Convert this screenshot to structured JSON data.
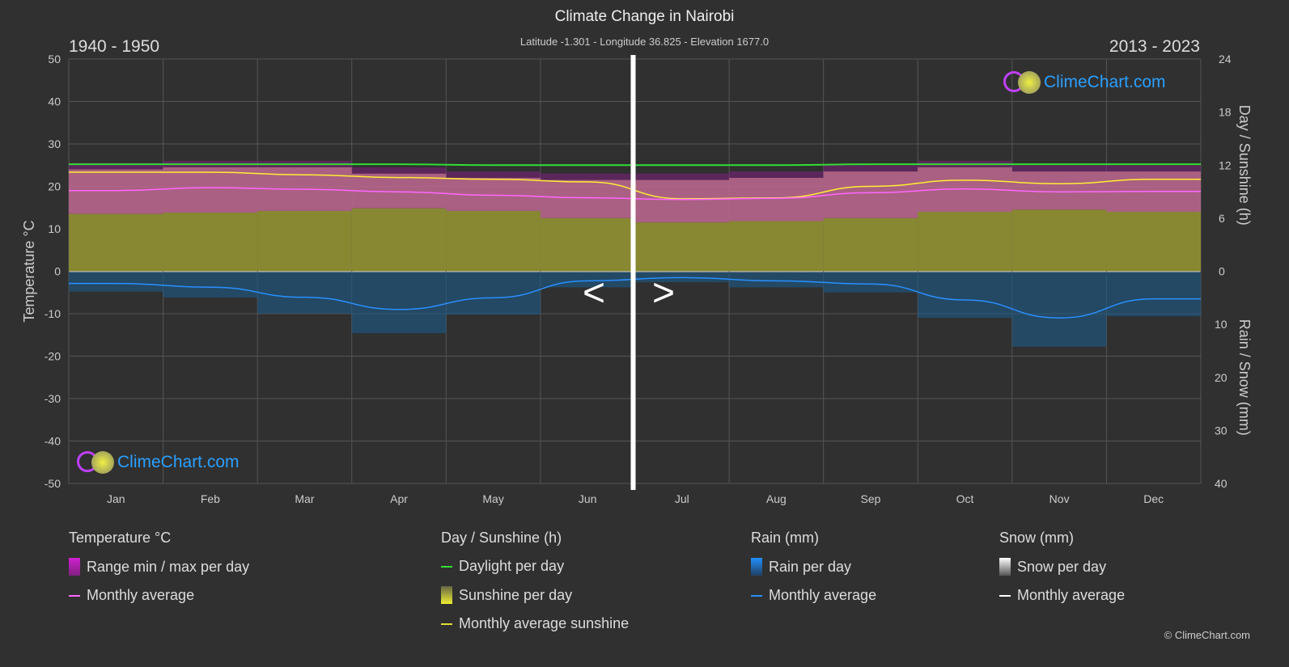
{
  "header": {
    "title": "Climate Change in Nairobi",
    "subtitle": "Latitude -1.301 - Longitude 36.825 - Elevation 1677.0",
    "left_period": "1940 - 1950",
    "right_period": "2013 - 2023"
  },
  "nav": {
    "prev": "<",
    "next": ">"
  },
  "logo": "ClimeChart.com",
  "copyright": "© ClimeChart.com",
  "legend": {
    "temperature": {
      "title": "Temperature °C",
      "items": [
        "Range min / max per day",
        "Monthly average"
      ]
    },
    "sun": {
      "title": "Day / Sunshine (h)",
      "items": [
        "Daylight per day",
        "Sunshine per day",
        "Monthly average sunshine"
      ]
    },
    "rain": {
      "title": "Rain (mm)",
      "items": [
        "Rain per day",
        "Monthly average"
      ]
    },
    "snow": {
      "title": "Snow (mm)",
      "items": [
        "Snow per day",
        "Monthly average"
      ]
    }
  },
  "colors": {
    "temp_avg": "#ff66ff",
    "temp_range": "#d070a0",
    "daylight": "#33dd33",
    "sunshine": "#c8c840",
    "sunshine_avg": "#ffee33",
    "rain": "#1e88e5",
    "snow": "#ffffff"
  },
  "chart_data": {
    "type": "line",
    "left_axis": {
      "label": "Temperature °C",
      "ylim": [
        -50,
        50
      ],
      "ticks": [
        50,
        40,
        30,
        20,
        10,
        0,
        -10,
        -20,
        -30,
        -40,
        -50
      ]
    },
    "right_axis_top": {
      "label": "Day / Sunshine (h)",
      "ylim": [
        0,
        24
      ],
      "ticks": [
        24,
        18,
        12,
        6,
        0
      ]
    },
    "right_axis_bottom": {
      "label": "Rain / Snow (mm)",
      "ylim": [
        0,
        40
      ],
      "ticks": [
        0,
        10,
        20,
        30,
        40
      ]
    },
    "categories": [
      "Jan",
      "Feb",
      "Mar",
      "Apr",
      "May",
      "Jun",
      "Jul",
      "Aug",
      "Sep",
      "Oct",
      "Nov",
      "Dec"
    ],
    "periods": [
      "1940 - 1950 (Jan–Jun)",
      "2013 - 2023 (Jul–Dec)"
    ],
    "grid": true,
    "series": [
      {
        "name": "Monthly average",
        "key": "temp_avg",
        "axis": "temp",
        "values": [
          19.0,
          19.7,
          19.3,
          18.7,
          17.9,
          17.3,
          16.9,
          17.2,
          18.5,
          19.4,
          18.7,
          18.8
        ]
      },
      {
        "name": "Range min / max per day",
        "key": "temp_range",
        "axis": "temp",
        "min": [
          13.5,
          13.8,
          14.2,
          14.8,
          14.2,
          12.5,
          11.5,
          11.8,
          12.5,
          14.0,
          14.5,
          14.0
        ],
        "max": [
          25.5,
          26,
          26,
          24.5,
          23.5,
          23,
          23,
          23.5,
          25,
          26,
          25,
          25
        ]
      },
      {
        "name": "Daylight per day",
        "key": "daylight",
        "axis": "sun",
        "values": [
          12.1,
          12.1,
          12.1,
          12.1,
          12.0,
          12.0,
          12.0,
          12.0,
          12.1,
          12.1,
          12.1,
          12.1
        ]
      },
      {
        "name": "Monthly average sunshine",
        "key": "sunshine_avg",
        "axis": "sun",
        "values": [
          11.2,
          11.2,
          10.9,
          10.6,
          10.4,
          10.1,
          8.2,
          8.3,
          9.6,
          10.3,
          9.9,
          10.4
        ]
      },
      {
        "name": "Monthly average",
        "key": "rain_avg",
        "axis": "rain",
        "values": [
          2.3,
          3.0,
          4.9,
          7.2,
          5.0,
          1.8,
          1.2,
          1.8,
          2.4,
          5.4,
          8.8,
          5.2
        ]
      }
    ]
  }
}
